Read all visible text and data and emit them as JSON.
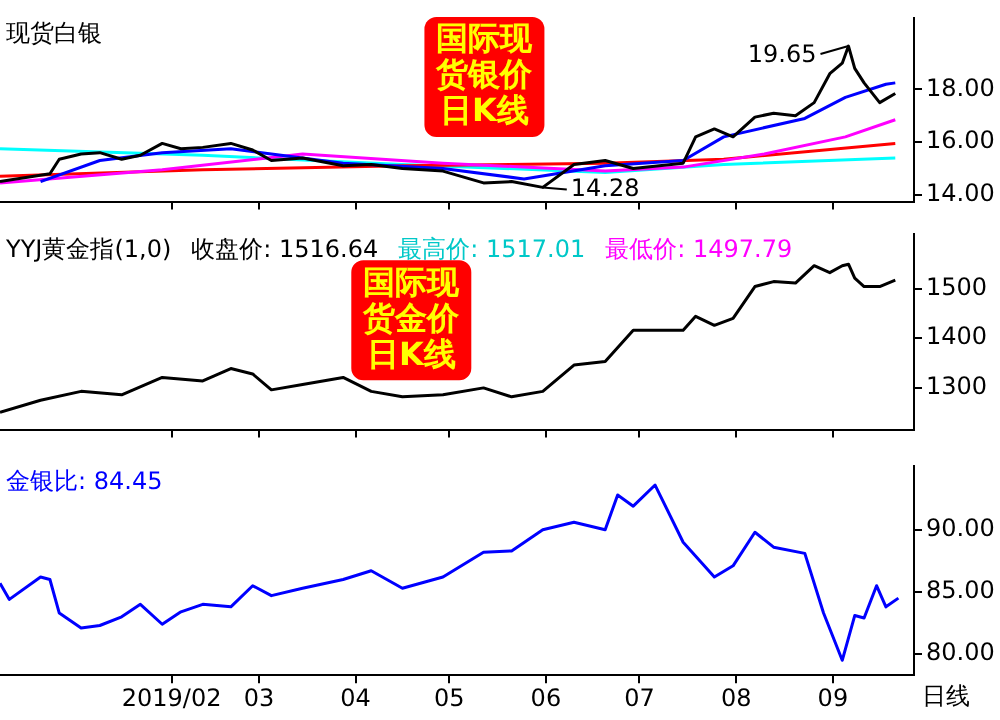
{
  "chart_data": [
    {
      "type": "line",
      "title": "现货白银",
      "annotations": [
        "国际现货银价日K线",
        {
          "text": "19.65",
          "x": "2019-09-06",
          "y": 19.65
        },
        {
          "text": "14.28",
          "x": "2019-05-31",
          "y": 14.28
        }
      ],
      "xlim": [
        "2018-12-08",
        "2019-09-27"
      ],
      "xticks": [
        {
          "value": "2019-02-01",
          "label": null
        },
        {
          "value": "2019-03-01",
          "label": null
        },
        {
          "value": "2019-04-01",
          "label": null
        },
        {
          "value": "2019-05-01",
          "label": null
        },
        {
          "value": "2019-06-01",
          "label": null
        },
        {
          "value": "2019-07-01",
          "label": null
        },
        {
          "value": "2019-08-01",
          "label": null
        },
        {
          "value": "2019-09-01",
          "label": null
        }
      ],
      "ylim": [
        13.74,
        20.7
      ],
      "yticks": [
        {
          "value": 14,
          "label": "14.00"
        },
        {
          "value": 16,
          "label": "16.00"
        },
        {
          "value": 18,
          "label": "18.00"
        }
      ],
      "tick_labels": "y",
      "grid": false,
      "legend": false,
      "series": [
        {
          "color": "#000000",
          "x": [
            "2018-12-08",
            "2018-12-24",
            "2018-12-27",
            "2019-01-03",
            "2019-01-09",
            "2019-01-16",
            "2019-01-22",
            "2019-01-29",
            "2019-02-04",
            "2019-02-11",
            "2019-02-20",
            "2019-02-27",
            "2019-03-05",
            "2019-03-15",
            "2019-03-28",
            "2019-04-06",
            "2019-04-16",
            "2019-04-29",
            "2019-05-12",
            "2019-05-21",
            "2019-05-31",
            "2019-06-10",
            "2019-06-20",
            "2019-06-29",
            "2019-07-15",
            "2019-07-19",
            "2019-07-25",
            "2019-07-31",
            "2019-08-07",
            "2019-08-13",
            "2019-08-20",
            "2019-08-26",
            "2019-08-31",
            "2019-09-04",
            "2019-09-06",
            "2019-09-08",
            "2019-09-11",
            "2019-09-16",
            "2019-09-21"
          ],
          "values": [
            14.5,
            14.8,
            15.35,
            15.55,
            15.6,
            15.35,
            15.5,
            15.95,
            15.75,
            15.8,
            15.95,
            15.7,
            15.3,
            15.4,
            15.1,
            15.15,
            15.0,
            14.9,
            14.45,
            14.5,
            14.28,
            15.15,
            15.3,
            15.0,
            15.2,
            16.2,
            16.5,
            16.2,
            16.95,
            17.1,
            17.0,
            17.5,
            18.6,
            19.0,
            19.65,
            18.8,
            18.25,
            17.5,
            17.85
          ]
        },
        {
          "color": "#0000ff",
          "x": [
            "2018-12-21",
            "2019-01-09",
            "2019-01-29",
            "2019-02-20",
            "2019-03-05",
            "2019-03-28",
            "2019-04-29",
            "2019-05-25",
            "2019-06-20",
            "2019-07-15",
            "2019-07-28",
            "2019-08-23",
            "2019-09-05",
            "2019-09-18",
            "2019-09-21"
          ],
          "values": [
            14.5,
            15.3,
            15.6,
            15.75,
            15.55,
            15.2,
            15.0,
            14.6,
            15.1,
            15.3,
            16.2,
            16.9,
            17.7,
            18.2,
            18.25
          ]
        },
        {
          "color": "#ff00ff",
          "x": [
            "2018-12-08",
            "2019-01-29",
            "2019-03-15",
            "2019-04-29",
            "2019-06-20",
            "2019-07-15",
            "2019-08-10",
            "2019-09-05",
            "2019-09-21"
          ],
          "values": [
            14.45,
            14.95,
            15.55,
            15.2,
            14.9,
            15.05,
            15.55,
            16.2,
            16.85
          ]
        },
        {
          "color": "#ff0000",
          "x": [
            "2018-12-08",
            "2019-02-11",
            "2019-04-16",
            "2019-06-20",
            "2019-07-28",
            "2019-09-21"
          ],
          "values": [
            14.7,
            14.95,
            15.1,
            15.2,
            15.35,
            15.95
          ]
        },
        {
          "color": "#00ffff",
          "x": [
            "2018-12-08",
            "2019-02-11",
            "2019-04-16",
            "2019-06-20",
            "2019-07-28",
            "2019-09-21"
          ],
          "values": [
            15.75,
            15.5,
            15.15,
            14.85,
            15.15,
            15.4
          ]
        }
      ]
    },
    {
      "type": "line",
      "title": "YYJ黄金指(1,0)",
      "annotations": [
        "收盘价: 1516.64",
        "最高价: 1517.01",
        "最低价: 1497.79",
        "国际现货金价日K线"
      ],
      "xlim": [
        "2018-12-08",
        "2019-09-27"
      ],
      "xticks": [
        {
          "value": "2019-02-01",
          "label": null
        },
        {
          "value": "2019-03-01",
          "label": null
        },
        {
          "value": "2019-04-01",
          "label": null
        },
        {
          "value": "2019-05-01",
          "label": null
        },
        {
          "value": "2019-06-01",
          "label": null
        },
        {
          "value": "2019-07-01",
          "label": null
        },
        {
          "value": "2019-08-01",
          "label": null
        },
        {
          "value": "2019-09-01",
          "label": null
        }
      ],
      "ylim": [
        1216,
        1609
      ],
      "yticks": [
        1300,
        1400,
        1500
      ],
      "tick_labels": "y",
      "grid": false,
      "legend": false,
      "series": [
        {
          "color": "#000000",
          "x": [
            "2018-12-08",
            "2018-12-21",
            "2019-01-03",
            "2019-01-16",
            "2019-01-29",
            "2019-02-11",
            "2019-02-20",
            "2019-02-27",
            "2019-03-05",
            "2019-03-15",
            "2019-03-28",
            "2019-04-06",
            "2019-04-16",
            "2019-04-29",
            "2019-05-12",
            "2019-05-21",
            "2019-05-31",
            "2019-06-10",
            "2019-06-20",
            "2019-06-29",
            "2019-07-15",
            "2019-07-19",
            "2019-07-25",
            "2019-07-31",
            "2019-08-07",
            "2019-08-13",
            "2019-08-20",
            "2019-08-26",
            "2019-08-31",
            "2019-09-04",
            "2019-09-06",
            "2019-09-08",
            "2019-09-11",
            "2019-09-16",
            "2019-09-21"
          ],
          "values": [
            1251,
            1275,
            1293,
            1286,
            1321,
            1314,
            1339,
            1328,
            1296,
            1307,
            1321,
            1293,
            1282,
            1286,
            1300,
            1282,
            1293,
            1346,
            1353,
            1416,
            1416,
            1444,
            1426,
            1440,
            1504,
            1514,
            1511,
            1546,
            1532,
            1546,
            1549,
            1521,
            1504,
            1504,
            1517
          ]
        }
      ]
    },
    {
      "type": "line",
      "title": "金银比: 84.45",
      "annotations": [
        "日线"
      ],
      "xlim": [
        "2018-12-08",
        "2019-09-27"
      ],
      "xticks": [
        {
          "value": "2019-02-01",
          "label": "2019/02"
        },
        {
          "value": "2019-03-01",
          "label": "03"
        },
        {
          "value": "2019-04-01",
          "label": "04"
        },
        {
          "value": "2019-05-01",
          "label": "05"
        },
        {
          "value": "2019-06-01",
          "label": "06"
        },
        {
          "value": "2019-07-01",
          "label": "07"
        },
        {
          "value": "2019-08-01",
          "label": "08"
        },
        {
          "value": "2019-09-01",
          "label": "09"
        }
      ],
      "ylim": [
        78.3,
        95.1
      ],
      "yticks": [
        {
          "value": 80,
          "label": "80.00"
        },
        {
          "value": 85,
          "label": "85.00"
        },
        {
          "value": 90,
          "label": "90.00"
        }
      ],
      "grid": false,
      "legend": false,
      "series": [
        {
          "color": "#0000ff",
          "x": [
            "2018-12-08",
            "2018-12-11",
            "2018-12-21",
            "2018-12-24",
            "2018-12-27",
            "2019-01-03",
            "2019-01-09",
            "2019-01-16",
            "2019-01-22",
            "2019-01-29",
            "2019-02-04",
            "2019-02-11",
            "2019-02-20",
            "2019-02-27",
            "2019-03-05",
            "2019-03-15",
            "2019-03-28",
            "2019-04-06",
            "2019-04-16",
            "2019-04-29",
            "2019-05-12",
            "2019-05-21",
            "2019-05-31",
            "2019-06-10",
            "2019-06-20",
            "2019-06-24",
            "2019-06-29",
            "2019-07-06",
            "2019-07-15",
            "2019-07-25",
            "2019-07-31",
            "2019-08-07",
            "2019-08-13",
            "2019-08-23",
            "2019-08-29",
            "2019-09-04",
            "2019-09-08",
            "2019-09-11",
            "2019-09-15",
            "2019-09-18",
            "2019-09-22"
          ],
          "values": [
            85.7,
            84.4,
            86.2,
            86.0,
            83.3,
            82.1,
            82.3,
            83.0,
            84.0,
            82.4,
            83.4,
            84.0,
            83.8,
            85.5,
            84.7,
            85.3,
            86.0,
            86.7,
            85.3,
            86.2,
            88.2,
            88.3,
            90.0,
            90.6,
            90.0,
            92.8,
            91.9,
            93.6,
            89.0,
            86.2,
            87.1,
            89.8,
            88.6,
            88.1,
            83.3,
            79.5,
            83.1,
            82.9,
            85.5,
            83.8,
            84.5
          ]
        }
      ]
    }
  ]
}
